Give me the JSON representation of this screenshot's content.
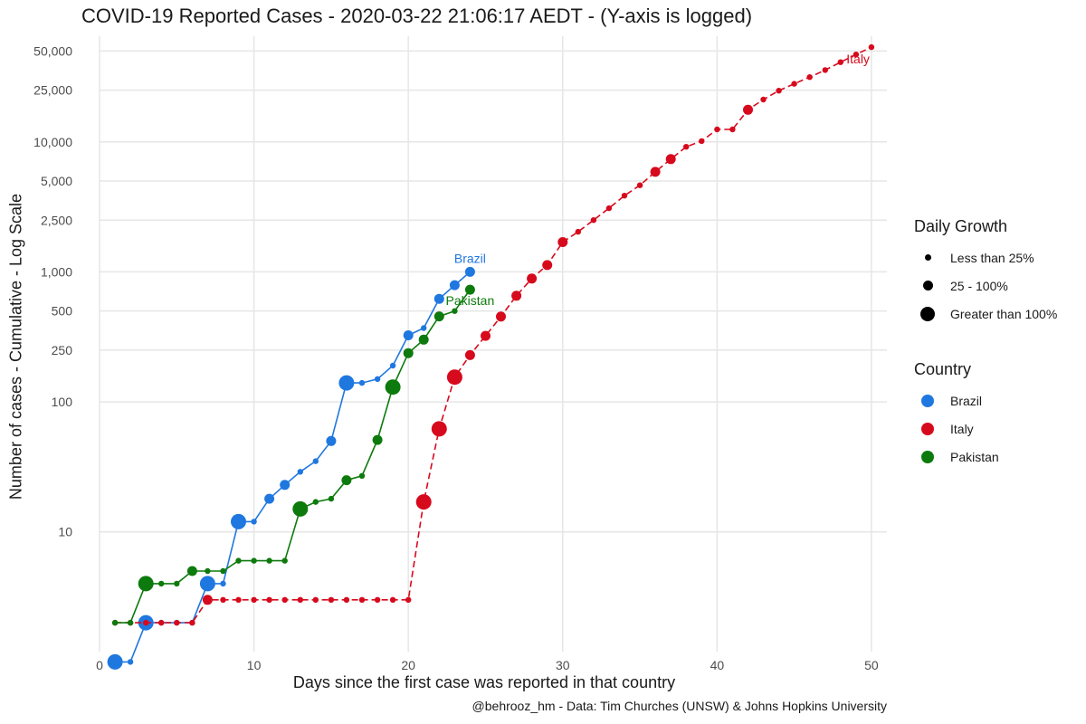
{
  "title": "COVID-19 Reported Cases - 2020-03-22 21:06:17 AEDT - (Y-axis is logged)",
  "caption": "@behrooz_hm - Data: Tim Churches (UNSW) & Johns Hopkins University",
  "chart_data": {
    "type": "line",
    "xlabel": "Days since the first case was reported in that country",
    "ylabel": "Number of cases - Cumulative - Log Scale",
    "y_scale": "log",
    "xlim": [
      0,
      51
    ],
    "ylim": [
      1.2,
      65000
    ],
    "x_ticks": [
      0,
      10,
      20,
      30,
      40,
      50
    ],
    "y_ticks": [
      {
        "value": 10,
        "label": "10"
      },
      {
        "value": 100,
        "label": "100"
      },
      {
        "value": 250,
        "label": "250"
      },
      {
        "value": 500,
        "label": "500"
      },
      {
        "value": 1000,
        "label": "1,000"
      },
      {
        "value": 2500,
        "label": "2,500"
      },
      {
        "value": 5000,
        "label": "5,000"
      },
      {
        "value": 10000,
        "label": "10,000"
      },
      {
        "value": 25000,
        "label": "25,000"
      },
      {
        "value": 50000,
        "label": "50,000"
      }
    ],
    "grid": true,
    "size_legend": {
      "title": "Daily Growth",
      "items": [
        {
          "label": "Less than 25%",
          "size": "small"
        },
        {
          "label": "25 - 100%",
          "size": "medium"
        },
        {
          "label": "Greater than 100%",
          "size": "large"
        }
      ]
    },
    "color_legend": {
      "title": "Country",
      "items": [
        {
          "label": "Brazil",
          "color": "#1f77e0"
        },
        {
          "label": "Italy",
          "color": "#d7091c"
        },
        {
          "label": "Pakistan",
          "color": "#0d7a0d"
        }
      ]
    },
    "series": [
      {
        "name": "Brazil",
        "color": "#1f77e0",
        "dash": false,
        "label": "Brazil",
        "points": [
          [
            1,
            1,
            "L"
          ],
          [
            2,
            1,
            "S"
          ],
          [
            3,
            2,
            "L"
          ],
          [
            4,
            2,
            "S"
          ],
          [
            5,
            2,
            "S"
          ],
          [
            6,
            2,
            "S"
          ],
          [
            7,
            4,
            "L"
          ],
          [
            8,
            4,
            "S"
          ],
          [
            9,
            12,
            "L"
          ],
          [
            10,
            12,
            "S"
          ],
          [
            11,
            18,
            "M"
          ],
          [
            12,
            23,
            "M"
          ],
          [
            13,
            29,
            "S"
          ],
          [
            14,
            35,
            "S"
          ],
          [
            15,
            50,
            "M"
          ],
          [
            16,
            140,
            "L"
          ],
          [
            17,
            140,
            "S"
          ],
          [
            18,
            150,
            "S"
          ],
          [
            19,
            190,
            "S"
          ],
          [
            20,
            325,
            "M"
          ],
          [
            21,
            370,
            "S"
          ],
          [
            22,
            620,
            "M"
          ],
          [
            23,
            790,
            "M"
          ],
          [
            24,
            1000,
            "M"
          ]
        ]
      },
      {
        "name": "Italy",
        "color": "#d7091c",
        "dash": true,
        "label": "Italy",
        "points": [
          [
            1,
            2,
            "S"
          ],
          [
            2,
            2,
            "S"
          ],
          [
            3,
            2,
            "S"
          ],
          [
            4,
            2,
            "S"
          ],
          [
            5,
            2,
            "S"
          ],
          [
            6,
            2,
            "S"
          ],
          [
            7,
            3,
            "M"
          ],
          [
            8,
            3,
            "S"
          ],
          [
            9,
            3,
            "S"
          ],
          [
            10,
            3,
            "S"
          ],
          [
            11,
            3,
            "S"
          ],
          [
            12,
            3,
            "S"
          ],
          [
            13,
            3,
            "S"
          ],
          [
            14,
            3,
            "S"
          ],
          [
            15,
            3,
            "S"
          ],
          [
            16,
            3,
            "S"
          ],
          [
            17,
            3,
            "S"
          ],
          [
            18,
            3,
            "S"
          ],
          [
            19,
            3,
            "S"
          ],
          [
            20,
            3,
            "S"
          ],
          [
            21,
            17,
            "L"
          ],
          [
            22,
            62,
            "L"
          ],
          [
            23,
            155,
            "L"
          ],
          [
            24,
            229,
            "M"
          ],
          [
            25,
            322,
            "M"
          ],
          [
            26,
            453,
            "M"
          ],
          [
            27,
            655,
            "M"
          ],
          [
            28,
            888,
            "M"
          ],
          [
            29,
            1128,
            "M"
          ],
          [
            30,
            1694,
            "M"
          ],
          [
            31,
            2036,
            "S"
          ],
          [
            32,
            2502,
            "S"
          ],
          [
            33,
            3089,
            "S"
          ],
          [
            34,
            3858,
            "S"
          ],
          [
            35,
            4636,
            "S"
          ],
          [
            36,
            5883,
            "M"
          ],
          [
            37,
            7375,
            "M"
          ],
          [
            38,
            9172,
            "S"
          ],
          [
            39,
            10149,
            "S"
          ],
          [
            40,
            12462,
            "S"
          ],
          [
            41,
            12462,
            "S"
          ],
          [
            42,
            17660,
            "M"
          ],
          [
            43,
            21157,
            "S"
          ],
          [
            44,
            24747,
            "S"
          ],
          [
            45,
            27980,
            "S"
          ],
          [
            46,
            31506,
            "S"
          ],
          [
            47,
            35713,
            "S"
          ],
          [
            48,
            41035,
            "S"
          ],
          [
            49,
            47021,
            "S"
          ],
          [
            50,
            53578,
            "S"
          ]
        ]
      },
      {
        "name": "Pakistan",
        "color": "#0d7a0d",
        "dash": false,
        "label": "Pakistan",
        "points": [
          [
            1,
            2,
            "S"
          ],
          [
            2,
            2,
            "S"
          ],
          [
            3,
            4,
            "L"
          ],
          [
            4,
            4,
            "S"
          ],
          [
            5,
            4,
            "S"
          ],
          [
            6,
            5,
            "M"
          ],
          [
            7,
            5,
            "S"
          ],
          [
            8,
            5,
            "S"
          ],
          [
            9,
            6,
            "S"
          ],
          [
            10,
            6,
            "S"
          ],
          [
            11,
            6,
            "S"
          ],
          [
            12,
            6,
            "S"
          ],
          [
            13,
            15,
            "L"
          ],
          [
            14,
            17,
            "S"
          ],
          [
            15,
            18,
            "S"
          ],
          [
            16,
            25,
            "M"
          ],
          [
            17,
            27,
            "S"
          ],
          [
            18,
            51,
            "M"
          ],
          [
            19,
            130,
            "L"
          ],
          [
            20,
            237,
            "M"
          ],
          [
            21,
            301,
            "M"
          ],
          [
            22,
            455,
            "M"
          ],
          [
            23,
            500,
            "S"
          ],
          [
            24,
            730,
            "M"
          ]
        ]
      }
    ]
  }
}
